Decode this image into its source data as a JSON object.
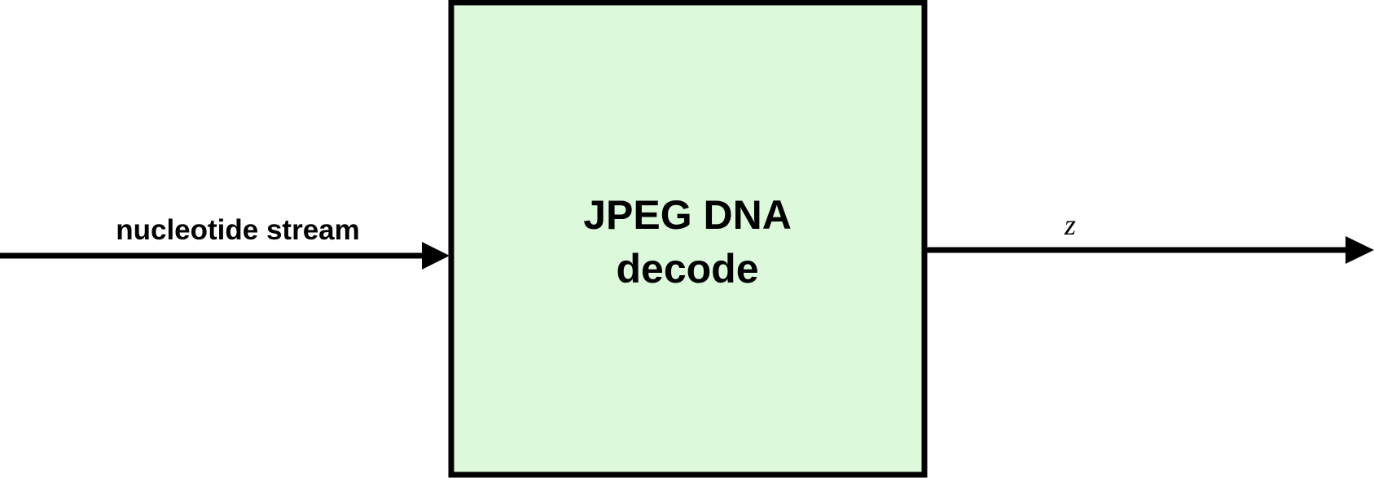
{
  "diagram": {
    "input_label": "nucleotide stream",
    "block": {
      "line1": "JPEG DNA",
      "line2": "decode",
      "fill_color": "#dcf9dc",
      "border_color": "#000000"
    },
    "output_label": "z"
  }
}
